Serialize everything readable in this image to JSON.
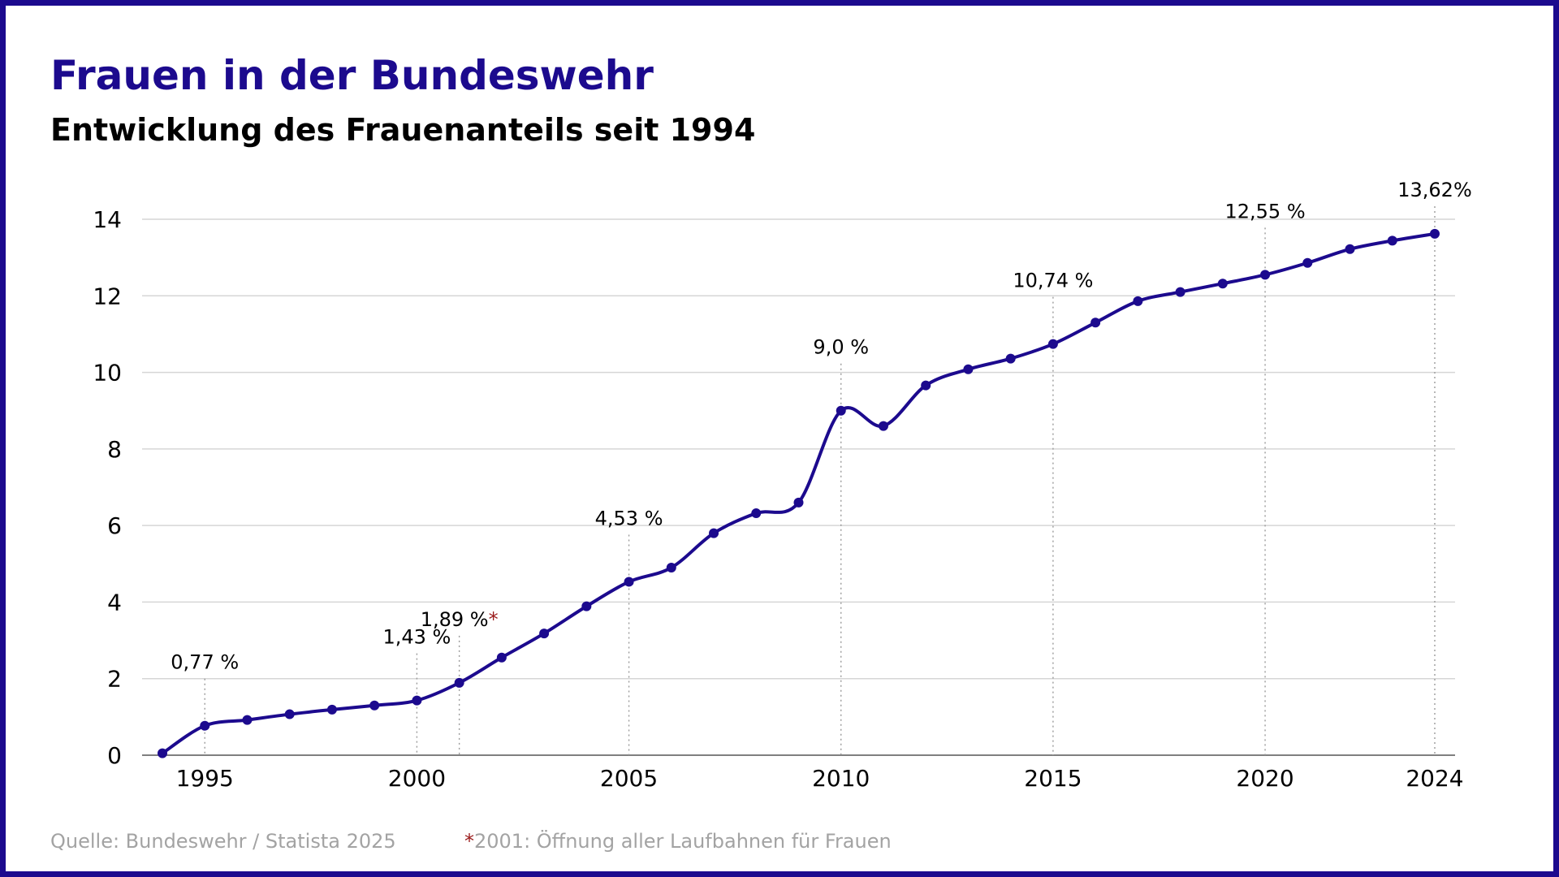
{
  "header": {
    "title": "Frauen in der Bundeswehr",
    "subtitle": "Entwicklung des Frauenanteils seit 1994"
  },
  "footer": {
    "source": "Quelle: Bundeswehr / Statista 2025",
    "footnote_marker": "*",
    "footnote_text": "2001: Öffnung aller Laufbahnen für Frauen"
  },
  "colors": {
    "accent": "#1c0a8e",
    "grid": "#d6d6d6",
    "guide": "#9a9a9a",
    "footnote_star": "#9a1a1a",
    "footer_text": "#a3a3a3"
  },
  "chart_data": {
    "type": "line",
    "title": "Frauen in der Bundeswehr",
    "subtitle": "Entwicklung des Frauenanteils seit 1994",
    "xlabel": "",
    "ylabel": "",
    "xlim": [
      1994,
      2024
    ],
    "ylim": [
      0,
      14
    ],
    "y_ticks": [
      0,
      2,
      4,
      6,
      8,
      10,
      12,
      14
    ],
    "x_ticks": [
      1995,
      2000,
      2005,
      2010,
      2015,
      2020,
      2024
    ],
    "grid": true,
    "series": [
      {
        "name": "Frauenanteil",
        "x": [
          1994,
          1995,
          1996,
          1997,
          1998,
          1999,
          2000,
          2001,
          2002,
          2003,
          2004,
          2005,
          2006,
          2007,
          2008,
          2009,
          2010,
          2011,
          2012,
          2013,
          2014,
          2015,
          2016,
          2017,
          2018,
          2019,
          2020,
          2021,
          2022,
          2023,
          2024
        ],
        "values": [
          0.05,
          0.77,
          0.92,
          1.07,
          1.19,
          1.3,
          1.43,
          1.89,
          2.55,
          3.18,
          3.89,
          4.53,
          4.9,
          5.8,
          6.32,
          6.6,
          9.0,
          8.6,
          9.66,
          10.08,
          10.36,
          10.74,
          11.3,
          11.86,
          12.1,
          12.32,
          12.55,
          12.86,
          13.22,
          13.44,
          13.62
        ]
      }
    ],
    "annotations": [
      {
        "x": 1995,
        "y": 0.77,
        "label": "0,77 %"
      },
      {
        "x": 2000,
        "y": 1.43,
        "label": "1,43 %"
      },
      {
        "x": 2001,
        "y": 1.89,
        "label": "1,89 %",
        "marker": "*"
      },
      {
        "x": 2005,
        "y": 4.53,
        "label": "4,53 %"
      },
      {
        "x": 2010,
        "y": 9.0,
        "label": "9,0 %"
      },
      {
        "x": 2015,
        "y": 10.74,
        "label": "10,74 %"
      },
      {
        "x": 2020,
        "y": 12.55,
        "label": "12,55 %"
      },
      {
        "x": 2024,
        "y": 13.62,
        "label": "13,62%"
      }
    ]
  }
}
